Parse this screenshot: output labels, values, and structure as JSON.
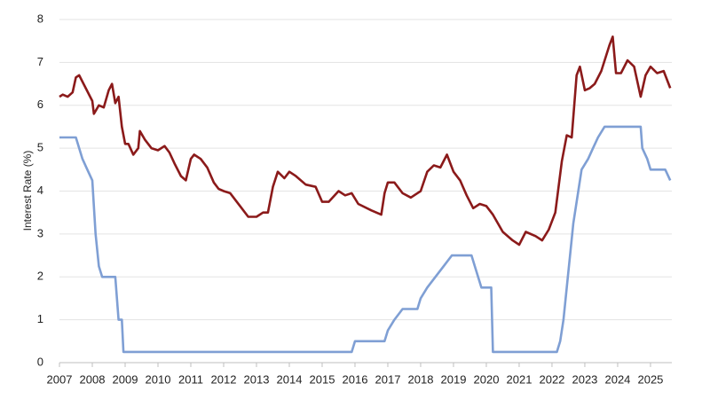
{
  "chart_data": {
    "type": "line",
    "y_label": "Interest Rate (%)",
    "xlim": [
      2007,
      2025.65
    ],
    "xticks": [
      2007,
      2008,
      2009,
      2010,
      2011,
      2012,
      2013,
      2014,
      2015,
      2016,
      2017,
      2018,
      2019,
      2020,
      2021,
      2022,
      2023,
      2024,
      2025
    ],
    "ylim": [
      0,
      8
    ],
    "yticks": [
      0,
      1,
      2,
      3,
      4,
      5,
      6,
      7,
      8
    ],
    "grid": true,
    "series": [
      {
        "color": "#8b1a1a",
        "x": [
          2007.0,
          2007.1,
          2007.25,
          2007.4,
          2007.5,
          2007.6,
          2007.8,
          2008.0,
          2008.05,
          2008.2,
          2008.35,
          2008.5,
          2008.6,
          2008.7,
          2008.8,
          2008.9,
          2009.0,
          2009.1,
          2009.25,
          2009.4,
          2009.45,
          2009.6,
          2009.8,
          2010.0,
          2010.2,
          2010.35,
          2010.5,
          2010.7,
          2010.85,
          2011.0,
          2011.1,
          2011.3,
          2011.5,
          2011.7,
          2011.85,
          2012.0,
          2012.2,
          2012.5,
          2012.75,
          2013.0,
          2013.2,
          2013.35,
          2013.5,
          2013.65,
          2013.85,
          2014.0,
          2014.2,
          2014.5,
          2014.8,
          2015.0,
          2015.2,
          2015.5,
          2015.7,
          2015.9,
          2016.1,
          2016.5,
          2016.8,
          2016.9,
          2017.0,
          2017.2,
          2017.45,
          2017.7,
          2017.9,
          2018.0,
          2018.2,
          2018.4,
          2018.6,
          2018.8,
          2019.0,
          2019.2,
          2019.4,
          2019.6,
          2019.8,
          2020.0,
          2020.2,
          2020.5,
          2020.8,
          2021.0,
          2021.2,
          2021.5,
          2021.7,
          2021.9,
          2022.1,
          2022.3,
          2022.45,
          2022.6,
          2022.75,
          2022.85,
          2023.0,
          2023.15,
          2023.3,
          2023.5,
          2023.75,
          2023.85,
          2023.95,
          2024.1,
          2024.3,
          2024.5,
          2024.7,
          2024.85,
          2025.0,
          2025.2,
          2025.4,
          2025.6
        ],
        "values": [
          6.2,
          6.25,
          6.2,
          6.3,
          6.65,
          6.7,
          6.4,
          6.1,
          5.8,
          6.0,
          5.95,
          6.35,
          6.5,
          6.05,
          6.2,
          5.5,
          5.1,
          5.1,
          4.85,
          5.0,
          5.4,
          5.2,
          5.0,
          4.95,
          5.05,
          4.9,
          4.65,
          4.35,
          4.25,
          4.75,
          4.85,
          4.75,
          4.55,
          4.2,
          4.05,
          4.0,
          3.95,
          3.65,
          3.4,
          3.4,
          3.5,
          3.5,
          4.1,
          4.45,
          4.3,
          4.45,
          4.35,
          4.15,
          4.1,
          3.75,
          3.75,
          4.0,
          3.9,
          3.95,
          3.7,
          3.55,
          3.45,
          3.95,
          4.2,
          4.2,
          3.95,
          3.85,
          3.95,
          4.0,
          4.45,
          4.6,
          4.55,
          4.85,
          4.45,
          4.25,
          3.9,
          3.6,
          3.7,
          3.65,
          3.45,
          3.05,
          2.85,
          2.75,
          3.05,
          2.95,
          2.85,
          3.1,
          3.5,
          4.7,
          5.3,
          5.25,
          6.7,
          6.9,
          6.35,
          6.4,
          6.5,
          6.8,
          7.4,
          7.6,
          6.75,
          6.75,
          7.05,
          6.9,
          6.2,
          6.7,
          6.9,
          6.75,
          6.8,
          6.4
        ]
      },
      {
        "color": "#7f9fd4",
        "x": [
          2007.0,
          2007.5,
          2007.7,
          2007.85,
          2008.0,
          2008.1,
          2008.2,
          2008.3,
          2008.7,
          2008.8,
          2008.9,
          2008.95,
          2015.9,
          2016.0,
          2016.9,
          2017.0,
          2017.2,
          2017.45,
          2017.9,
          2018.0,
          2018.2,
          2018.45,
          2018.7,
          2018.95,
          2019.55,
          2019.65,
          2019.75,
          2019.85,
          2020.15,
          2020.2,
          2022.15,
          2022.25,
          2022.35,
          2022.45,
          2022.55,
          2022.65,
          2022.8,
          2022.9,
          2023.1,
          2023.25,
          2023.4,
          2023.6,
          2024.7,
          2024.75,
          2024.9,
          2025.0,
          2025.45,
          2025.6
        ],
        "values": [
          5.25,
          5.25,
          4.75,
          4.5,
          4.25,
          3.0,
          2.25,
          2.0,
          2.0,
          1.0,
          1.0,
          0.25,
          0.25,
          0.5,
          0.5,
          0.75,
          1.0,
          1.25,
          1.25,
          1.5,
          1.75,
          2.0,
          2.25,
          2.5,
          2.5,
          2.25,
          2.0,
          1.75,
          1.75,
          0.25,
          0.25,
          0.5,
          1.0,
          1.75,
          2.5,
          3.25,
          4.0,
          4.5,
          4.75,
          5.0,
          5.25,
          5.5,
          5.5,
          5.0,
          4.75,
          4.5,
          4.5,
          4.25
        ]
      }
    ]
  }
}
